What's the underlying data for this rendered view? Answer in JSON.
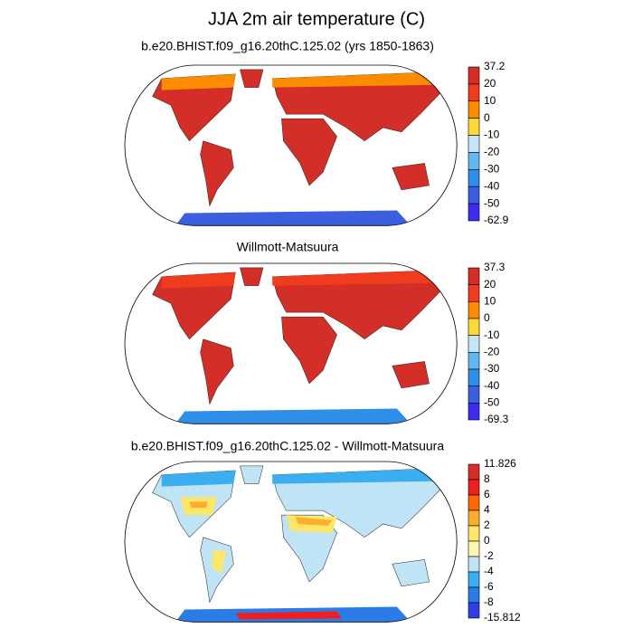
{
  "title": "JJA 2m air temperature (C)",
  "panels": [
    {
      "title": "b.e20.BHIST.f09_g16.20thC.125.02 (yrs 1850-1863)",
      "colorbar": {
        "labels": [
          37.2,
          20,
          10,
          0,
          -10,
          -20,
          -30,
          -40,
          -50,
          -62.9
        ],
        "colors": [
          "#d42e28",
          "#f03c1e",
          "#fb8c00",
          "#fdd83a",
          "#c6e6f8",
          "#64b8f0",
          "#2f8ee8",
          "#3a5fe0",
          "#3b2cf0"
        ]
      }
    },
    {
      "title": "Willmott-Matsuura",
      "colorbar": {
        "labels": [
          37.3,
          20,
          10,
          0,
          -10,
          -20,
          -30,
          -40,
          -50,
          -69.3
        ],
        "colors": [
          "#d42e28",
          "#f03c1e",
          "#fb8c00",
          "#fdd83a",
          "#c6e6f8",
          "#64b8f0",
          "#2f8ee8",
          "#3a5fe0",
          "#3b2cf0"
        ]
      }
    },
    {
      "title": "b.e20.BHIST.f09_g16.20thC.125.02 - Willmott-Matsuura",
      "colorbar": {
        "labels": [
          11.826,
          8,
          6,
          4,
          2,
          0,
          -2,
          -4,
          -6,
          -8,
          -15.812
        ],
        "colors": [
          "#d42e28",
          "#f01e1e",
          "#fb6a00",
          "#fdae2a",
          "#fde76a",
          "#fdf8b0",
          "#bfe4f5",
          "#3aaeee",
          "#2c7ce8",
          "#3040e6"
        ]
      }
    }
  ]
}
